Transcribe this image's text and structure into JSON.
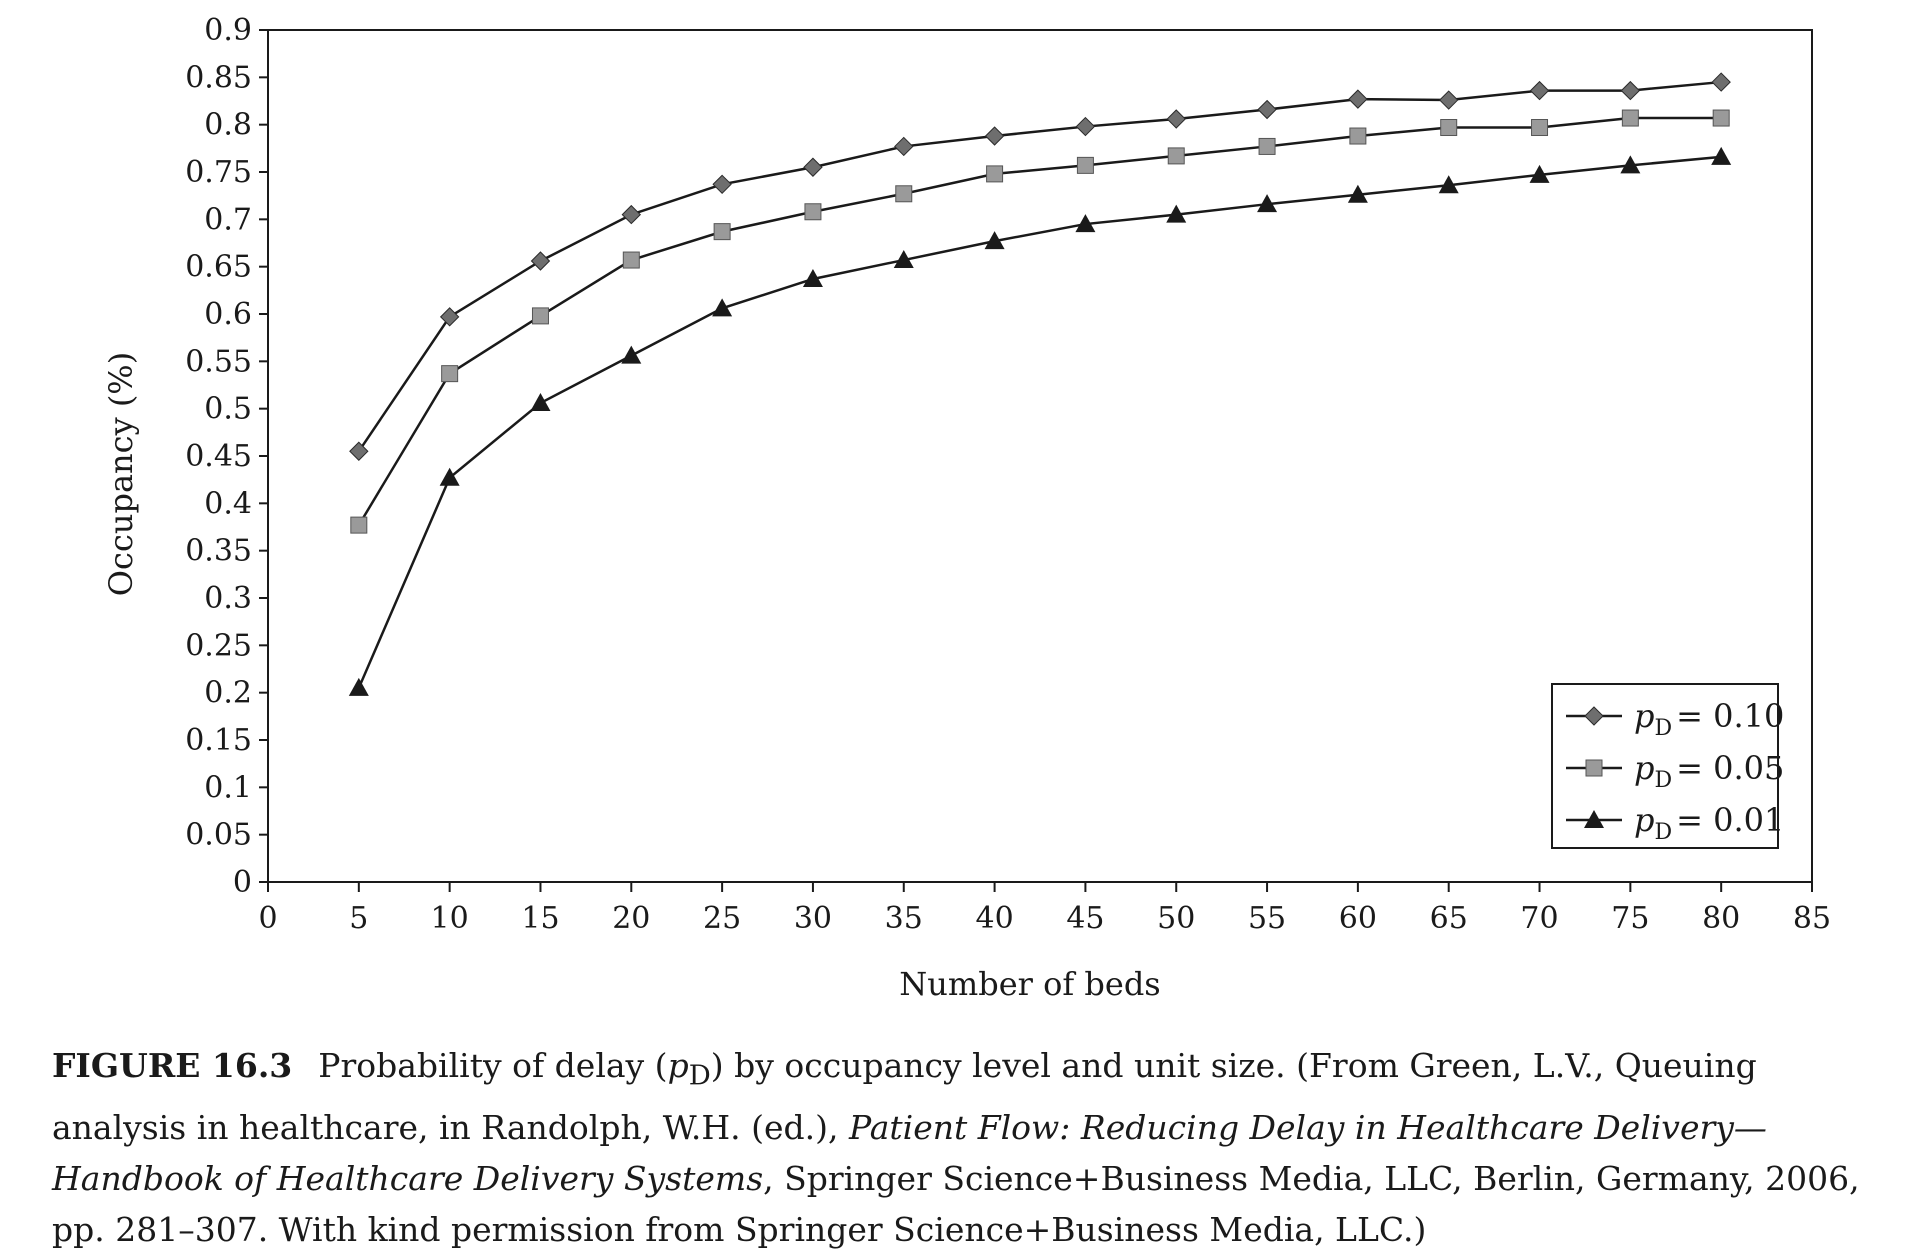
{
  "chart_data": {
    "type": "line",
    "xlabel": "Number of beds",
    "ylabel": "Occupancy (%)",
    "xlim": [
      0,
      85
    ],
    "ylim": [
      0,
      0.9
    ],
    "x_ticks": [
      "0",
      "5",
      "10",
      "15",
      "20",
      "25",
      "30",
      "35",
      "40",
      "45",
      "50",
      "55",
      "60",
      "65",
      "70",
      "75",
      "80",
      "85"
    ],
    "y_ticks": [
      "0",
      "0.05",
      "0.1",
      "0.15",
      "0.2",
      "0.25",
      "0.3",
      "0.35",
      "0.4",
      "0.45",
      "0.5",
      "0.55",
      "0.6",
      "0.65",
      "0.7",
      "0.75",
      "0.8",
      "0.85",
      "0.9"
    ],
    "grid": false,
    "legend_position": "bottom-right",
    "x": [
      5,
      10,
      15,
      20,
      25,
      30,
      35,
      40,
      45,
      50,
      55,
      60,
      65,
      70,
      75,
      80
    ],
    "series": [
      {
        "name_base": "p",
        "name_sub": "D",
        "name_value": "= 0.10",
        "marker": "diamond",
        "marker_color": "#6e6e6e",
        "values": [
          0.455,
          0.597,
          0.656,
          0.705,
          0.737,
          0.755,
          0.777,
          0.788,
          0.798,
          0.806,
          0.816,
          0.827,
          0.826,
          0.836,
          0.836,
          0.845
        ]
      },
      {
        "name_base": "p",
        "name_sub": "D",
        "name_value": "= 0.05",
        "marker": "square",
        "marker_color": "#9a9a9a",
        "values": [
          0.377,
          0.537,
          0.598,
          0.657,
          0.687,
          0.708,
          0.727,
          0.748,
          0.757,
          0.767,
          0.777,
          0.788,
          0.797,
          0.797,
          0.807,
          0.807
        ]
      },
      {
        "name_base": "p",
        "name_sub": "D",
        "name_value": "= 0.01",
        "marker": "triangle",
        "marker_color": "#1a1a1a",
        "values": [
          0.205,
          0.427,
          0.506,
          0.556,
          0.606,
          0.637,
          0.657,
          0.677,
          0.695,
          0.705,
          0.716,
          0.726,
          0.736,
          0.747,
          0.757,
          0.766
        ]
      }
    ]
  },
  "caption": {
    "label": "FIGURE 16.3",
    "part1": "Probability of delay (",
    "p": "p",
    "sub": "D",
    "part2": ") by occupancy level and unit size. (From Green, L.V., Queuing analysis in healthcare, in Randolph, W.H. (ed.), ",
    "italic": "Patient Flow: Reducing Delay in Healthcare Delivery—Handbook of Healthcare Delivery Systems",
    "part3": ", Springer Science+Business Media, LLC, Berlin, Germany, 2006, pp. 281–307. With kind permission from Springer Science+Business Media, LLC.)"
  }
}
